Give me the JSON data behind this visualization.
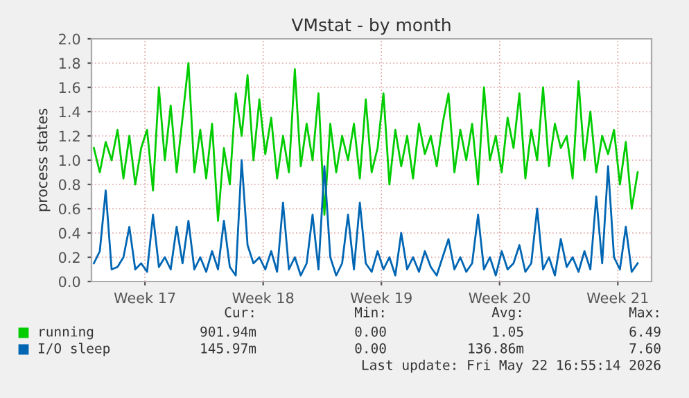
{
  "chart_data": {
    "type": "line",
    "title": "VMstat - by month",
    "ylabel": "process states",
    "x": [
      "2026-04-20T11:24",
      "2026-04-20T19:48",
      "2026-04-21T04:12",
      "2026-04-21T12:36",
      "2026-04-21T21:00",
      "2026-04-22T05:24",
      "2026-04-22T13:48",
      "2026-04-22T22:12",
      "2026-04-23T06:36",
      "2026-04-23T15:00",
      "2026-04-23T23:24",
      "2026-04-24T07:48",
      "2026-04-24T16:12",
      "2026-04-25T00:36",
      "2026-04-25T09:00",
      "2026-04-25T17:24",
      "2026-04-26T01:48",
      "2026-04-26T10:12",
      "2026-04-26T18:36",
      "2026-04-27T03:00",
      "2026-04-27T11:24",
      "2026-04-27T19:48",
      "2026-04-28T04:12",
      "2026-04-28T12:36",
      "2026-04-28T21:00",
      "2026-04-29T05:24",
      "2026-04-29T13:48",
      "2026-04-29T22:12",
      "2026-04-30T06:36",
      "2026-04-30T15:00",
      "2026-04-30T23:24",
      "2026-05-01T07:48",
      "2026-05-01T16:12",
      "2026-05-02T00:36",
      "2026-05-02T09:00",
      "2026-05-02T17:24",
      "2026-05-03T01:48",
      "2026-05-03T10:12",
      "2026-05-03T18:36",
      "2026-05-04T03:00",
      "2026-05-04T11:24",
      "2026-05-04T19:48",
      "2026-05-05T04:12",
      "2026-05-05T12:36",
      "2026-05-05T21:00",
      "2026-05-06T05:24",
      "2026-05-06T13:48",
      "2026-05-06T22:12",
      "2026-05-07T06:36",
      "2026-05-07T15:00",
      "2026-05-07T23:24",
      "2026-05-08T07:48",
      "2026-05-08T16:12",
      "2026-05-09T00:36",
      "2026-05-09T09:00",
      "2026-05-09T17:24",
      "2026-05-10T01:48",
      "2026-05-10T10:12",
      "2026-05-10T18:36",
      "2026-05-11T03:00",
      "2026-05-11T11:24",
      "2026-05-11T19:48",
      "2026-05-12T04:12",
      "2026-05-12T12:36",
      "2026-05-12T21:00",
      "2026-05-13T05:24",
      "2026-05-13T13:48",
      "2026-05-13T22:12",
      "2026-05-14T06:36",
      "2026-05-14T15:00",
      "2026-05-14T23:24",
      "2026-05-15T07:48",
      "2026-05-15T16:12",
      "2026-05-16T00:36",
      "2026-05-16T09:00",
      "2026-05-16T17:24",
      "2026-05-17T01:48",
      "2026-05-17T10:12",
      "2026-05-17T18:36",
      "2026-05-18T03:00",
      "2026-05-18T11:24",
      "2026-05-18T19:48",
      "2026-05-19T04:12",
      "2026-05-19T12:36",
      "2026-05-19T21:00",
      "2026-05-20T05:24",
      "2026-05-20T13:48",
      "2026-05-20T22:12",
      "2026-05-21T06:36",
      "2026-05-21T15:00",
      "2026-05-21T23:24",
      "2026-05-22T07:48",
      "2026-05-22T16:12"
    ],
    "series": [
      {
        "name": "running",
        "color": "#00cc00",
        "values": [
          1.1,
          0.9,
          1.15,
          1.0,
          1.25,
          0.85,
          1.2,
          0.8,
          1.1,
          1.25,
          0.75,
          1.6,
          1.0,
          1.45,
          0.9,
          1.35,
          1.8,
          0.9,
          1.25,
          0.85,
          1.3,
          0.5,
          1.1,
          0.8,
          1.55,
          1.2,
          1.7,
          1.0,
          1.5,
          1.05,
          1.35,
          0.85,
          1.2,
          0.9,
          1.75,
          0.95,
          1.3,
          1.0,
          1.55,
          0.55,
          1.3,
          0.9,
          1.2,
          1.0,
          1.3,
          0.85,
          1.5,
          0.9,
          1.1,
          1.55,
          0.8,
          1.25,
          0.95,
          1.2,
          0.85,
          1.3,
          1.05,
          1.2,
          0.95,
          1.3,
          1.55,
          0.9,
          1.25,
          1.0,
          1.3,
          0.8,
          1.6,
          1.0,
          1.2,
          0.9,
          1.35,
          1.1,
          1.55,
          0.85,
          1.25,
          1.0,
          1.6,
          0.95,
          1.3,
          1.1,
          1.2,
          0.85,
          1.65,
          1.0,
          1.4,
          0.9,
          1.2,
          1.05,
          1.25,
          0.8,
          1.15,
          0.6,
          0.9
        ]
      },
      {
        "name": "I/O sleep",
        "color": "#0066b3",
        "values": [
          0.15,
          0.25,
          0.75,
          0.1,
          0.12,
          0.2,
          0.45,
          0.1,
          0.15,
          0.08,
          0.55,
          0.12,
          0.2,
          0.1,
          0.45,
          0.15,
          0.5,
          0.1,
          0.2,
          0.08,
          0.25,
          0.1,
          0.5,
          0.12,
          0.05,
          1.0,
          0.3,
          0.15,
          0.2,
          0.1,
          0.25,
          0.08,
          0.65,
          0.1,
          0.2,
          0.05,
          0.15,
          0.55,
          0.1,
          0.95,
          0.2,
          0.05,
          0.15,
          0.55,
          0.1,
          0.65,
          0.15,
          0.08,
          0.25,
          0.1,
          0.2,
          0.05,
          0.4,
          0.1,
          0.2,
          0.08,
          0.25,
          0.12,
          0.05,
          0.2,
          0.35,
          0.1,
          0.2,
          0.08,
          0.15,
          0.55,
          0.1,
          0.2,
          0.05,
          0.25,
          0.1,
          0.15,
          0.3,
          0.08,
          0.15,
          0.6,
          0.1,
          0.2,
          0.05,
          0.35,
          0.12,
          0.2,
          0.08,
          0.25,
          0.1,
          0.7,
          0.15,
          0.95,
          0.2,
          0.1,
          0.45,
          0.08,
          0.15
        ]
      }
    ],
    "xlim": [
      "2026-04-20T08:00",
      "2026-05-23T12:00"
    ],
    "xticks": [
      {
        "value": "2026-04-23T12:00",
        "label": "Week 17"
      },
      {
        "value": "2026-04-30T12:00",
        "label": "Week 18"
      },
      {
        "value": "2026-05-07T12:00",
        "label": "Week 19"
      },
      {
        "value": "2026-05-14T12:00",
        "label": "Week 20"
      },
      {
        "value": "2026-05-21T12:00",
        "label": "Week 21"
      }
    ],
    "ylim": [
      0,
      2.0
    ],
    "yticks": [
      {
        "value": 0,
        "label": "0.0"
      },
      0.2,
      0.4,
      0.6,
      0.8,
      {
        "value": 1,
        "label": "1.0"
      },
      1.2,
      1.4,
      1.6,
      1.8,
      {
        "value": 2,
        "label": "2.0"
      }
    ],
    "grid": true,
    "legend": "bottom",
    "marker": "none",
    "line_style": "solid",
    "annotations": [
      "Cur:",
      "Min:",
      "Avg:",
      "Max:",
      "901.94m",
      "0.00",
      "1.05",
      "6.49",
      "145.97m",
      "0.00",
      "136.86m",
      "7.60",
      "Last update: Fri May 22 16:55:14 2026"
    ]
  }
}
